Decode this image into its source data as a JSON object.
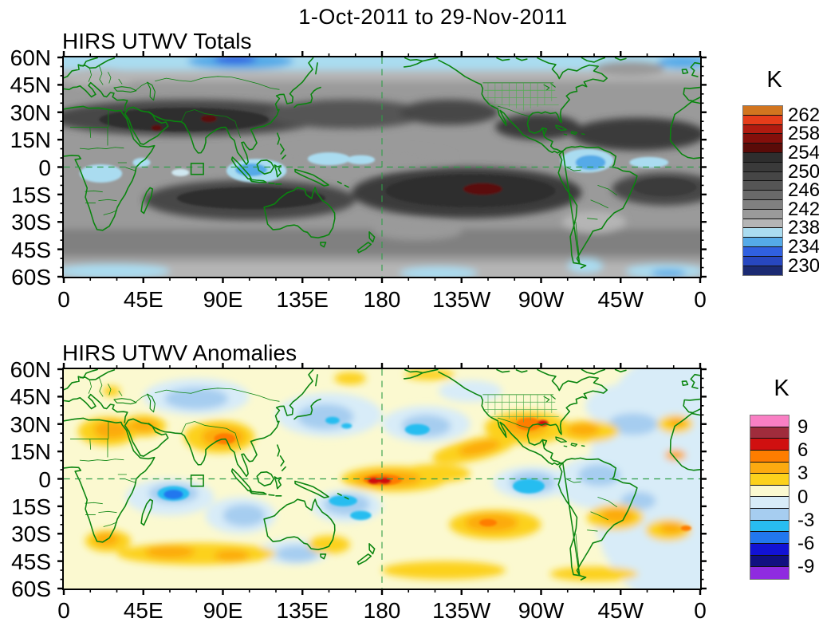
{
  "page_title": "1-Oct-2011 to 29-Nov-2011",
  "panels": [
    {
      "title": "HIRS UTWV Totals",
      "x_tick_labels": [
        "0",
        "45E",
        "90E",
        "135E",
        "180",
        "135W",
        "90W",
        "45W",
        "0"
      ],
      "y_tick_labels": [
        "60N",
        "45N",
        "30N",
        "15N",
        "0",
        "15S",
        "30S",
        "45S",
        "60S"
      ],
      "colorbar": {
        "title": "K",
        "labels": [
          "262",
          "258",
          "254",
          "250",
          "246",
          "242",
          "238",
          "234",
          "230"
        ],
        "boundaries": [
          1,
          3,
          5,
          7,
          9,
          11,
          13,
          15,
          17
        ],
        "colors": [
          "#d2751f",
          "#e63d1a",
          "#b01b10",
          "#840f0b",
          "#5a0b08",
          "#2e2e2e",
          "#3a3a3a",
          "#464646",
          "#555555",
          "#696969",
          "#808080",
          "#9a9a9a",
          "#b5b5b5",
          "#aadcf0",
          "#55aae8",
          "#3060e0",
          "#2747c0",
          "#1b2a72"
        ]
      }
    },
    {
      "title": "HIRS UTWV Anomalies",
      "x_tick_labels": [
        "0",
        "45E",
        "90E",
        "135E",
        "180",
        "135W",
        "90W",
        "45W",
        "0"
      ],
      "y_tick_labels": [
        "60N",
        "45N",
        "30N",
        "15N",
        "0",
        "15S",
        "30S",
        "45S",
        "60S"
      ],
      "colorbar": {
        "title": "K",
        "labels": [
          "9",
          "6",
          "3",
          "0",
          "-3",
          "-6",
          "-9"
        ],
        "boundaries": [
          1,
          3,
          5,
          7,
          9,
          11,
          13
        ],
        "colors": [
          "#f97fc4",
          "#a02c3c",
          "#d01010",
          "#fe7d00",
          "#fcaa10",
          "#fcd11c",
          "#fbf9d0",
          "#d8ecf8",
          "#a6cdf0",
          "#28bdf0",
          "#2277ee",
          "#1212d4",
          "#101080",
          "#8f2be0"
        ]
      }
    }
  ],
  "map_colors": {
    "coastline": "#0a850f",
    "country_border": "#0a850f",
    "us_state_border": "#4fae4f",
    "dashed_reference_lines": "#2f9e47",
    "frame": "#000000"
  },
  "chart_data": [
    {
      "type": "filled_contour_map",
      "title": "HIRS UTWV Totals",
      "units": "K",
      "variable": "HIRS upper tropospheric water vapor brightness temperature",
      "period": "1-Oct-2011 to 29-Nov-2011",
      "projection": "equirectangular",
      "lon_range_deg": [
        0,
        360
      ],
      "lat_range_deg": [
        -60,
        60
      ],
      "lon_tick_labels": [
        "0",
        "45E",
        "90E",
        "135E",
        "180",
        "135W",
        "90W",
        "45W",
        "0"
      ],
      "lat_tick_labels": [
        "60N",
        "45N",
        "30N",
        "15N",
        "0",
        "15S",
        "30S",
        "45S",
        "60S"
      ],
      "contour_interval_K": 2,
      "colorbar_tick_values_K": [
        262,
        258,
        254,
        250,
        246,
        242,
        238,
        234,
        230
      ],
      "legend_position": "right",
      "features": [
        "dry subtropical band 248-256 K from North Africa across Arabia to South Asia (15-35N)",
        "maxima above 260 K (dark red) near 52E 21N Arabia, 82E 27N Himalaya region, 125W 12S South Pacific",
        "broad very dark dry band 250-256 K across southern tropics 5S-25S from Indian Ocean to eastern Pacific",
        "moist regions 232-238 K (blue) over Indonesia, equatorial Africa, northern South America, equatorial Atlantic",
        "light blue moist bands along 55-60N and 55-60S, darkest blue at top near 90E-110E",
        "green dashed equator and 180-longitude reference lines, green reference box at 72-79E on equator"
      ]
    },
    {
      "type": "filled_contour_map",
      "title": "HIRS UTWV Anomalies",
      "units": "K",
      "variable": "HIRS upper tropospheric water vapor brightness temperature anomaly",
      "period": "1-Oct-2011 to 29-Nov-2011",
      "projection": "equirectangular",
      "lon_range_deg": [
        0,
        360
      ],
      "lat_range_deg": [
        -60,
        60
      ],
      "lon_tick_labels": [
        "0",
        "45E",
        "90E",
        "135E",
        "180",
        "135W",
        "90W",
        "45W",
        "0"
      ],
      "lat_tick_labels": [
        "60N",
        "45N",
        "30N",
        "15N",
        "0",
        "15S",
        "30S",
        "45S",
        "60S"
      ],
      "contour_interval_K": 1.5,
      "colorbar_tick_values_K": [
        9,
        6,
        3,
        0,
        -3,
        -6,
        -9
      ],
      "legend_position": "right",
      "features": [
        "strong positive anomaly +6 to +9 K on the equator at the dateline (two red cores near 175E and 179W)",
        "positive anomalies +3 to +7 K over Mexico / Gulf of Mexico / SE United States with small red core",
        "positive anomalies over NW Africa, Arabia, India-Bay of Bengal (orange core), subtropical Atlantic",
        "positive anomalies +3 to +6 K South Pacific near 120W 25S, Bolivia, South Atlantic near 20W 27S, southern Indian Ocean 40S",
        "negative anomalies -3 to -6 K equatorial Indian Ocean near 62E, Coral Sea, eastern equatorial Pacific off Peru, North Pacific near 160W 27N",
        "green dashed equator and 180-longitude reference lines, green reference box at 72-79E on equator"
      ]
    }
  ]
}
